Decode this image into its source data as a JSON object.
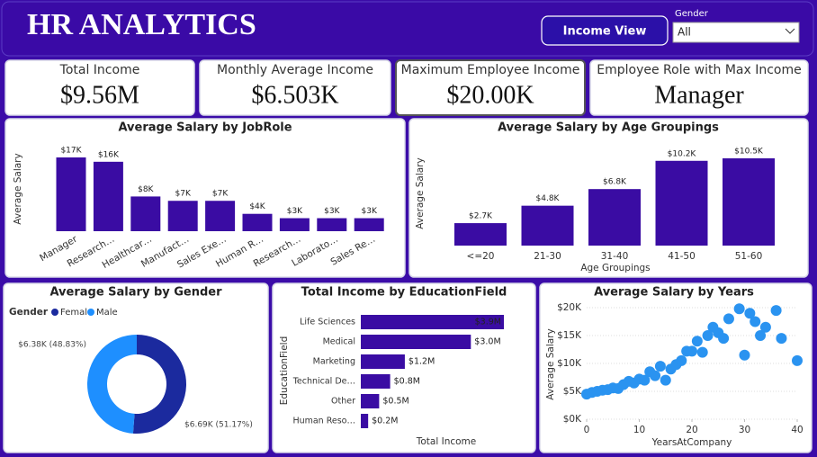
{
  "header": {
    "title": "HR ANALYTICS",
    "button": "Income View",
    "slicer": {
      "label": "Gender",
      "value": "All"
    }
  },
  "kpis": [
    {
      "title": "Total Income",
      "value": "$9.56M"
    },
    {
      "title": "Monthly Average Income",
      "value": "$6.503K"
    },
    {
      "title": "Maximum Employee Income",
      "value": "$20.00K"
    },
    {
      "title": "Employee Role with Max Income",
      "value": "Manager"
    }
  ],
  "chart_data": [
    {
      "type": "bar",
      "title": "Average Salary by JobRole",
      "y_label": "Average Salary",
      "color": "#3a0ca3",
      "categories": [
        "Manager",
        "Research…",
        "Healthcar…",
        "Manufact…",
        "Sales Exe…",
        "Human R…",
        "Research…",
        "Laborato…",
        "Sales Re…"
      ],
      "values": [
        17,
        16,
        8,
        7,
        7,
        4,
        3,
        3,
        3
      ],
      "value_labels": [
        "$17K",
        "$16K",
        "$8K",
        "$7K",
        "$7K",
        "$4K",
        "$3K",
        "$3K",
        "$3K"
      ]
    },
    {
      "type": "bar",
      "title": "Average Salary by Age Groupings",
      "y_label": "Average Salary",
      "x_label": "Age Groupings",
      "color": "#3a0ca3",
      "categories": [
        "<=20",
        "21-30",
        "31-40",
        "41-50",
        "51-60"
      ],
      "values": [
        2.7,
        4.8,
        6.8,
        10.2,
        10.5
      ],
      "value_labels": [
        "$2.7K",
        "$4.8K",
        "$6.8K",
        "$10.2K",
        "$10.5K"
      ]
    },
    {
      "type": "donut",
      "title": "Average Salary by Gender",
      "legend_title": "Gender",
      "categories": [
        "Female",
        "Male"
      ],
      "colors": [
        "#1b2a9e",
        "#1e8fff"
      ],
      "values": [
        6.69,
        6.38
      ],
      "value_labels": [
        "$6.69K (51.17%)",
        "$6.38K (48.83%)"
      ]
    },
    {
      "type": "hbar",
      "title": "Total Income by EducationField",
      "y_label": "EducationField",
      "x_label": "Total Income",
      "color": "#3a0ca3",
      "categories": [
        "Life Sciences",
        "Medical",
        "Marketing",
        "Technical De…",
        "Other",
        "Human Reso…"
      ],
      "values": [
        3.9,
        3.0,
        1.2,
        0.8,
        0.5,
        0.2
      ],
      "value_labels": [
        "$3.9M",
        "$3.0M",
        "$1.2M",
        "$0.8M",
        "$0.5M",
        "$0.2M"
      ]
    },
    {
      "type": "scatter",
      "title": "Average Salary by Years",
      "x_label": "YearsAtCompany",
      "y_label": "Average Salary",
      "color": "#2a93f0",
      "grid": true,
      "xlim": [
        0,
        40
      ],
      "xticks": [
        0,
        10,
        20,
        30,
        40
      ],
      "ylim": [
        0,
        20000
      ],
      "yticks": [
        {
          "value": 0,
          "label": "$0K"
        },
        {
          "value": 5000,
          "label": "$5K"
        },
        {
          "value": 10000,
          "label": "$10K"
        },
        {
          "value": 15000,
          "label": "$15K"
        },
        {
          "value": 20000,
          "label": "$20K"
        }
      ],
      "x": [
        0,
        1,
        2,
        3,
        4,
        5,
        6,
        7,
        8,
        9,
        10,
        11,
        12,
        13,
        14,
        15,
        16,
        17,
        18,
        19,
        20,
        21,
        22,
        23,
        24,
        25,
        26,
        27,
        29,
        30,
        31,
        32,
        33,
        34,
        36,
        37,
        40
      ],
      "values": [
        4500,
        4800,
        5000,
        5200,
        5300,
        5600,
        5500,
        6200,
        6800,
        6500,
        7200,
        7000,
        8500,
        7800,
        9500,
        7000,
        9000,
        9800,
        10500,
        12200,
        12200,
        14000,
        12000,
        15000,
        16500,
        15500,
        14500,
        18000,
        19800,
        11500,
        19000,
        17500,
        15000,
        16500,
        19500,
        14500,
        10500
      ]
    }
  ]
}
